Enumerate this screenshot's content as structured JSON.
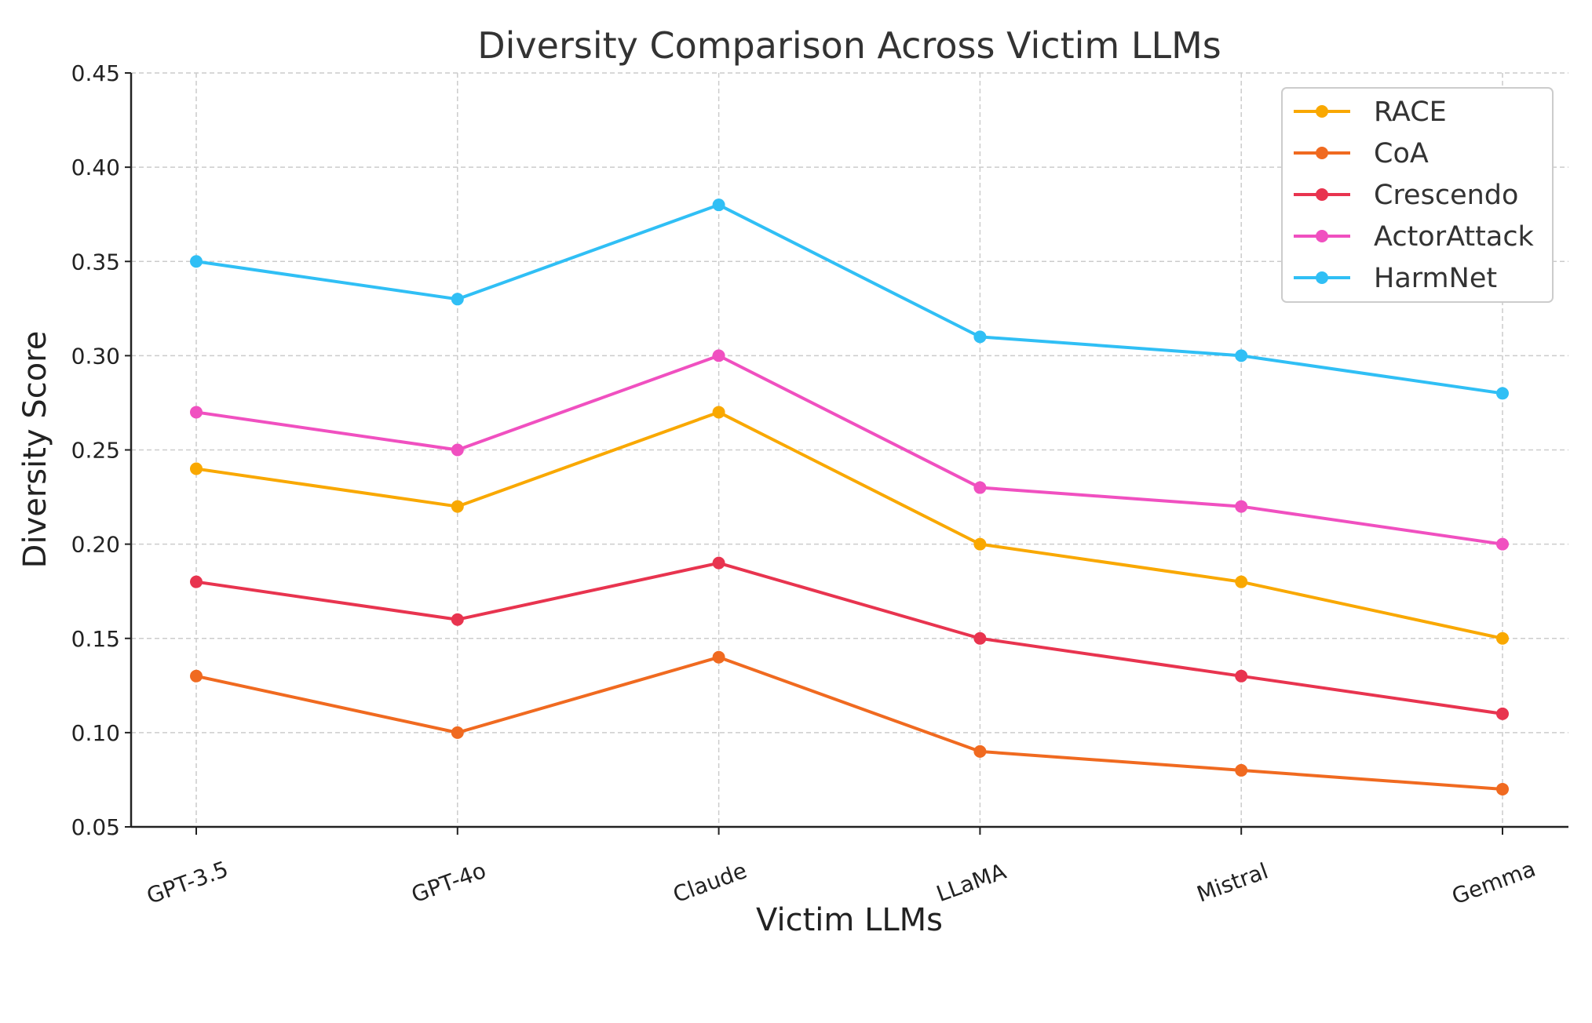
{
  "chart_data": {
    "type": "line",
    "title": "Diversity Comparison Across Victim LLMs",
    "xlabel": "Victim LLMs",
    "ylabel": "Diversity Score",
    "categories": [
      "GPT-3.5",
      "GPT-4o",
      "Claude",
      "LLaMA",
      "Mistral",
      "Gemma"
    ],
    "ylim": [
      0.05,
      0.45
    ],
    "yticks": [
      "0.05",
      "0.10",
      "0.15",
      "0.20",
      "0.25",
      "0.30",
      "0.35",
      "0.40",
      "0.45"
    ],
    "grid": true,
    "legend_position": "top-right",
    "series": [
      {
        "name": "RACE",
        "color": "#F9A800",
        "values": [
          0.24,
          0.22,
          0.27,
          0.2,
          0.18,
          0.15
        ]
      },
      {
        "name": "CoA",
        "color": "#F06A20",
        "values": [
          0.13,
          0.1,
          0.14,
          0.09,
          0.08,
          0.07
        ]
      },
      {
        "name": "Crescendo",
        "color": "#E8344F",
        "values": [
          0.18,
          0.16,
          0.19,
          0.15,
          0.13,
          0.11
        ]
      },
      {
        "name": "ActorAttack",
        "color": "#F050C0",
        "values": [
          0.27,
          0.25,
          0.3,
          0.23,
          0.22,
          0.2
        ]
      },
      {
        "name": "HarmNet",
        "color": "#30BFF5",
        "values": [
          0.35,
          0.33,
          0.38,
          0.31,
          0.3,
          0.28
        ]
      }
    ]
  }
}
